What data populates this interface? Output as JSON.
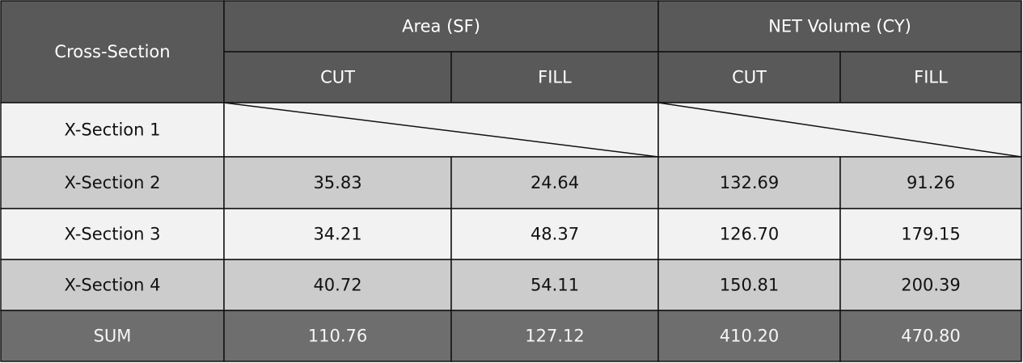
{
  "table": {
    "header": {
      "row1": [
        "Cross-Section",
        "Area (SF)",
        "NET Volume (CY)"
      ],
      "row2": [
        "CUT",
        "FILL",
        "CUT",
        "FILL"
      ]
    },
    "rows": [
      [
        "X-Section 1"
      ],
      [
        "X-Section 2",
        "35.83",
        "24.64",
        "132.69",
        "91.26"
      ],
      [
        "X-Section 3",
        "34.21",
        "48.37",
        "126.70",
        "179.15"
      ],
      [
        "X-Section 4",
        "40.72",
        "54.11",
        "150.81",
        "200.39"
      ]
    ],
    "sum": [
      "SUM",
      "110.76",
      "127.12",
      "410.20",
      "470.80"
    ]
  }
}
